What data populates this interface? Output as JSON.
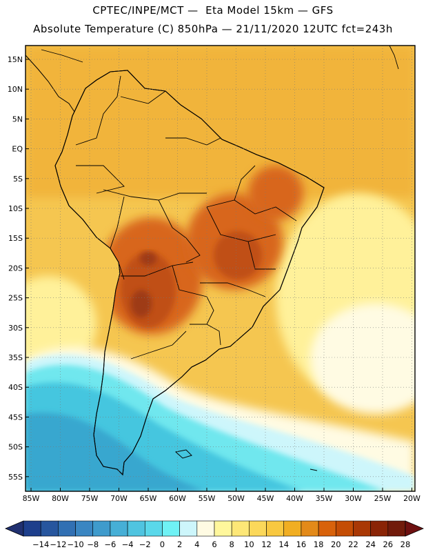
{
  "header": {
    "line1": "CPTEC/INPE/MCT —  Eta Model 15km — GFS",
    "line2": "Absolute Temperature (C) 850hPa — 21/11/2020 12UTC fct=243h"
  },
  "axes": {
    "lat_labels": [
      "15N",
      "10N",
      "5N",
      "EQ",
      "5S",
      "10S",
      "15S",
      "20S",
      "25S",
      "30S",
      "35S",
      "40S",
      "45S",
      "50S",
      "55S"
    ],
    "lon_labels": [
      "85W",
      "80W",
      "75W",
      "70W",
      "65W",
      "60W",
      "55W",
      "50W",
      "45W",
      "40W",
      "35W",
      "30W",
      "25W",
      "20W"
    ],
    "grid": "dotted"
  },
  "colorbar": {
    "labels": [
      "-14",
      "-12",
      "-10",
      "-8",
      "-6",
      "-4",
      "-2",
      "0",
      "2",
      "4",
      "6",
      "8",
      "10",
      "12",
      "14",
      "16",
      "18",
      "20",
      "22",
      "24",
      "26",
      "28"
    ],
    "colors": [
      "#1d3f8c",
      "#27569e",
      "#3170b3",
      "#3a86c2",
      "#3f9bcc",
      "#46afd6",
      "#4fc4e0",
      "#5ad8ea",
      "#6ff2f5",
      "#cdf6fb",
      "#fffbe3",
      "#fff79c",
      "#fde777",
      "#fbd85a",
      "#f8c840",
      "#f1ae22",
      "#e38a19",
      "#d8620b",
      "#c44d05",
      "#a93805",
      "#8a2406",
      "#711b0b"
    ],
    "under_color": "#203070",
    "over_color": "#6e1010"
  },
  "map": {
    "ocean_north": "#f1b43a",
    "ocean_mid": "#f5c650",
    "land_main": "#eba22a",
    "land_hot": "#d8661b",
    "land_hotter": "#c04f16",
    "land_hottest": "#9e3a18",
    "cold_1": "#cdf6fb",
    "cold_2": "#6fe7ee",
    "cold_3": "#45c6df",
    "cold_4": "#38a7cf",
    "pale": "#fffbe3",
    "yellow": "#fff19a",
    "border_color": "#000000"
  }
}
